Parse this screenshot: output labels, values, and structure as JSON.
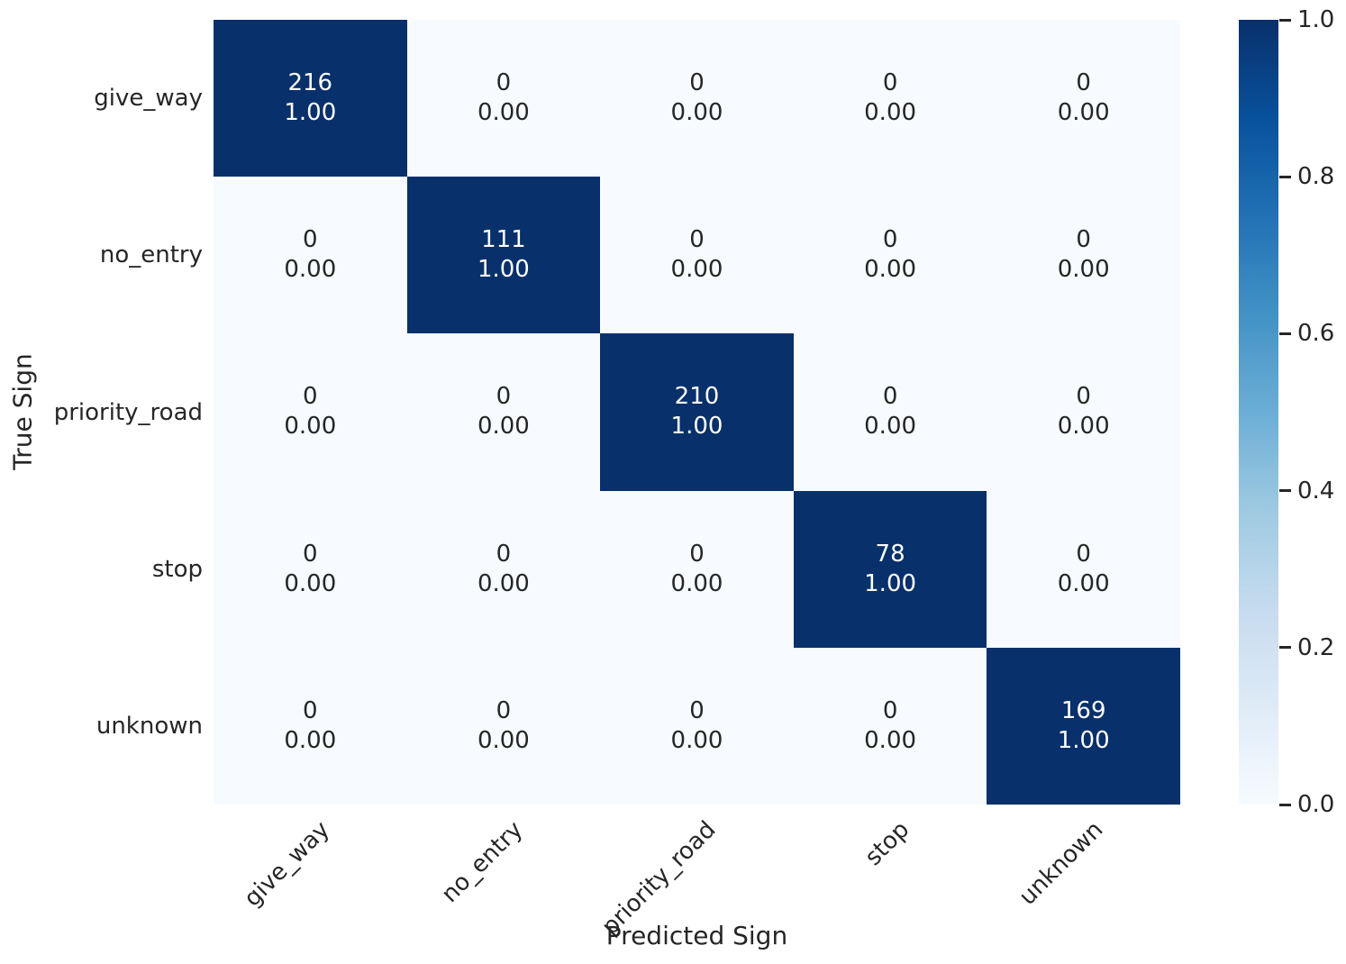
{
  "chart_data": {
    "type": "heatmap",
    "title": "",
    "xlabel": "Predicted Sign",
    "ylabel": "True Sign",
    "x_categories": [
      "give_way",
      "no_entry",
      "priority_road",
      "stop",
      "unknown"
    ],
    "y_categories": [
      "give_way",
      "no_entry",
      "priority_road",
      "stop",
      "unknown"
    ],
    "counts": [
      [
        216,
        0,
        0,
        0,
        0
      ],
      [
        0,
        111,
        0,
        0,
        0
      ],
      [
        0,
        0,
        210,
        0,
        0
      ],
      [
        0,
        0,
        0,
        78,
        0
      ],
      [
        0,
        0,
        0,
        0,
        169
      ]
    ],
    "proportions": [
      [
        1.0,
        0.0,
        0.0,
        0.0,
        0.0
      ],
      [
        0.0,
        1.0,
        0.0,
        0.0,
        0.0
      ],
      [
        0.0,
        0.0,
        1.0,
        0.0,
        0.0
      ],
      [
        0.0,
        0.0,
        0.0,
        1.0,
        0.0
      ],
      [
        0.0,
        0.0,
        0.0,
        0.0,
        1.0
      ]
    ],
    "annotation_format": "count newline proportion with 2 decimals",
    "grid": false,
    "legend_position": "colorbar-right",
    "colorbar": {
      "vmin": 0.0,
      "vmax": 1.0,
      "tick_values": [
        1.0,
        0.8,
        0.6,
        0.4,
        0.2,
        0.0
      ],
      "tick_labels": [
        "1.0",
        "0.8",
        "0.6",
        "0.4",
        "0.2",
        "0.0"
      ]
    },
    "colormap": "Blues",
    "colors": {
      "cmap_stops_low_to_high": [
        "#f7fbff",
        "#deebf7",
        "#c6dbef",
        "#9ecae1",
        "#6baed6",
        "#4292c6",
        "#2171b5",
        "#08519c",
        "#08306b"
      ],
      "cell_low": "#f7fbff",
      "cell_high": "#08306b",
      "text_on_dark": "#ffffff",
      "text_on_light": "#262626",
      "axis_text": "#262626"
    }
  }
}
